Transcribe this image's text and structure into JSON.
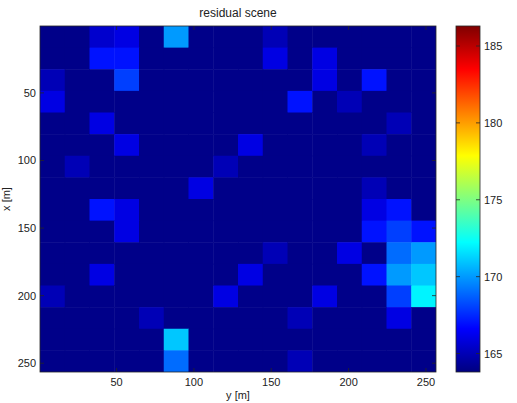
{
  "chart_data": {
    "type": "heatmap",
    "title": "residual scene",
    "xlabel": "y [m]",
    "ylabel": "x [m]",
    "xlim": [
      0.5,
      256.5
    ],
    "ylim": [
      0.5,
      256.5
    ],
    "xticks": [
      50,
      100,
      150,
      200,
      250
    ],
    "yticks": [
      50,
      100,
      150,
      200,
      250
    ],
    "colorbar": {
      "range": [
        163.8,
        186.3
      ],
      "ticks": [
        165,
        170,
        175,
        180,
        185
      ]
    },
    "cells": [
      [
        164,
        164,
        165.5,
        166,
        164,
        170,
        164,
        164,
        164,
        165,
        164,
        164,
        164,
        164,
        164,
        164
      ],
      [
        164,
        164,
        167,
        167,
        164,
        164,
        164,
        164,
        164,
        166,
        164,
        166,
        164,
        164,
        164,
        164
      ],
      [
        165,
        164,
        164,
        168,
        164,
        164,
        164,
        164,
        164,
        164,
        164,
        166,
        164,
        167,
        164,
        164
      ],
      [
        166,
        164,
        164,
        164,
        164,
        164,
        164,
        164,
        164,
        164,
        167,
        164,
        165,
        164,
        164,
        164
      ],
      [
        164,
        164,
        166,
        164,
        164,
        164,
        164,
        164,
        164,
        164,
        164,
        164,
        164,
        164,
        165,
        164
      ],
      [
        164,
        164,
        164,
        166,
        164,
        164,
        164,
        164,
        166,
        164,
        164,
        164,
        164,
        165,
        164,
        164
      ],
      [
        164,
        165,
        164,
        164,
        164,
        164,
        164,
        165,
        164,
        164,
        164,
        164,
        164,
        164,
        164,
        164
      ],
      [
        164,
        164,
        164,
        164,
        164,
        164,
        166,
        164,
        164,
        164,
        164,
        164,
        164,
        165,
        164,
        164
      ],
      [
        164,
        164,
        167,
        166,
        164,
        164,
        164,
        164,
        164,
        164,
        164,
        164,
        164,
        166,
        167,
        164
      ],
      [
        164,
        164,
        164,
        166,
        164,
        164,
        164,
        164,
        164,
        164,
        164,
        164,
        164,
        167,
        168,
        167
      ],
      [
        164,
        164,
        164,
        164,
        164,
        164,
        164,
        164,
        164,
        165,
        164,
        164,
        166,
        164,
        169,
        170
      ],
      [
        164,
        164,
        166,
        164,
        164,
        164,
        164,
        164,
        166,
        164,
        164,
        164,
        164,
        167,
        170,
        171
      ],
      [
        165,
        164,
        164,
        164,
        164,
        164,
        164,
        166,
        164,
        164,
        164,
        166,
        164,
        164,
        168,
        172
      ],
      [
        164,
        164,
        164,
        164,
        165,
        164,
        164,
        164,
        164,
        164,
        165,
        164,
        164,
        164,
        166,
        164
      ],
      [
        164,
        164,
        164,
        164,
        164,
        171,
        164,
        164,
        164,
        164,
        164,
        164,
        164,
        164,
        164,
        164
      ],
      [
        164,
        164,
        164,
        164,
        164,
        169,
        164,
        164,
        164,
        164,
        165,
        164,
        164,
        164,
        164,
        164
      ]
    ]
  }
}
